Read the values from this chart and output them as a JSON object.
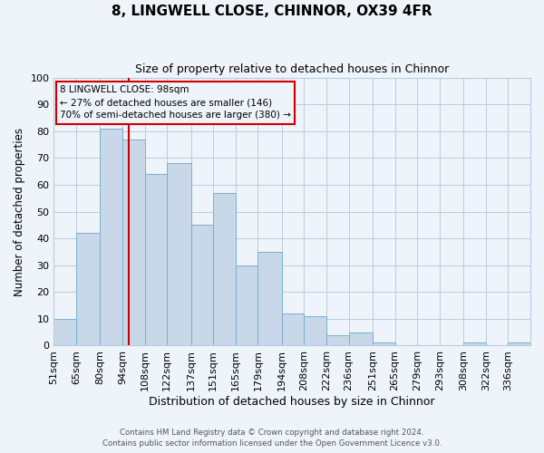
{
  "title": "8, LINGWELL CLOSE, CHINNOR, OX39 4FR",
  "subtitle": "Size of property relative to detached houses in Chinnor",
  "xlabel": "Distribution of detached houses by size in Chinnor",
  "ylabel": "Number of detached properties",
  "footer_line1": "Contains HM Land Registry data © Crown copyright and database right 2024.",
  "footer_line2": "Contains public sector information licensed under the Open Government Licence v3.0.",
  "bin_labels": [
    "51sqm",
    "65sqm",
    "80sqm",
    "94sqm",
    "108sqm",
    "122sqm",
    "137sqm",
    "151sqm",
    "165sqm",
    "179sqm",
    "194sqm",
    "208sqm",
    "222sqm",
    "236sqm",
    "251sqm",
    "265sqm",
    "279sqm",
    "293sqm",
    "308sqm",
    "322sqm",
    "336sqm"
  ],
  "bin_edges": [
    51,
    65,
    80,
    94,
    108,
    122,
    137,
    151,
    165,
    179,
    194,
    208,
    222,
    236,
    251,
    265,
    279,
    293,
    308,
    322,
    336,
    350
  ],
  "bar_heights": [
    10,
    42,
    81,
    77,
    64,
    68,
    45,
    57,
    30,
    35,
    12,
    11,
    4,
    5,
    1,
    0,
    0,
    0,
    1,
    0,
    1
  ],
  "bar_color": "#c8d8e8",
  "bar_edge_color": "#7ab0d0",
  "grid_color": "#b8cce0",
  "bg_color": "#eef4fa",
  "property_line_x": 98,
  "property_line_color": "#cc0000",
  "annotation_line1": "8 LINGWELL CLOSE: 98sqm",
  "annotation_line2": "← 27% of detached houses are smaller (146)",
  "annotation_line3": "70% of semi-detached houses are larger (380) →",
  "annotation_box_color": "#cc0000",
  "ylim": [
    0,
    100
  ],
  "yticks": [
    0,
    10,
    20,
    30,
    40,
    50,
    60,
    70,
    80,
    90,
    100
  ]
}
